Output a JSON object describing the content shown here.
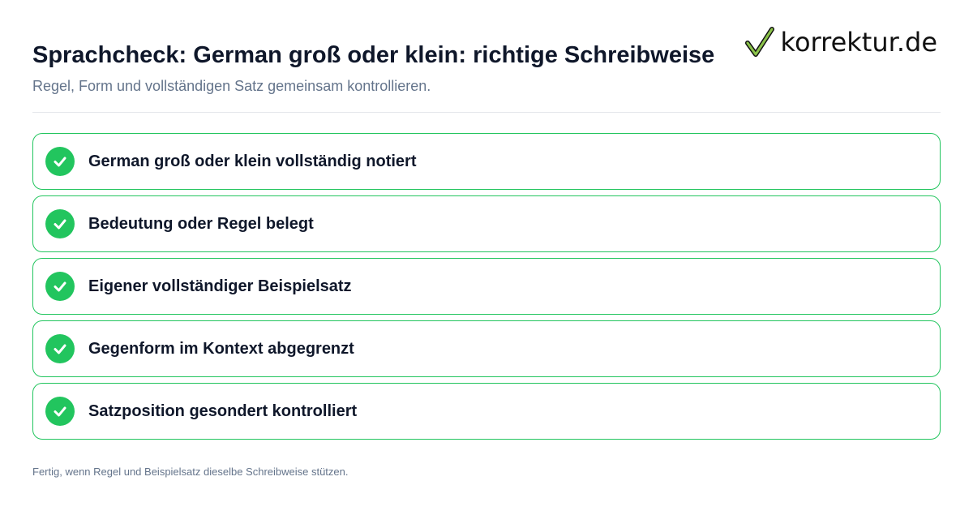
{
  "header": {
    "title": "Sprachcheck: German groß oder klein: richtige Schreibweise",
    "subtitle": "Regel, Form und vollständigen Satz gemeinsam kontrollieren."
  },
  "logo": {
    "text": "korrektur.de",
    "icon": "checkmark-icon",
    "check_color": "#8bc34a"
  },
  "checklist": {
    "items": [
      {
        "label": "German groß oder klein vollständig notiert",
        "checked": true
      },
      {
        "label": "Bedeutung oder Regel belegt",
        "checked": true
      },
      {
        "label": "Eigener vollständiger Beispielsatz",
        "checked": true
      },
      {
        "label": "Gegenform im Kontext abgegrenzt",
        "checked": true
      },
      {
        "label": "Satzposition gesondert kontrolliert",
        "checked": true
      }
    ]
  },
  "footer": {
    "note": "Fertig, wenn Regel und Beispielsatz dieselbe Schreibweise stützen."
  },
  "colors": {
    "accent": "#22c55e",
    "title": "#0f172a",
    "muted": "#64748b",
    "divider": "#e5e7eb"
  }
}
